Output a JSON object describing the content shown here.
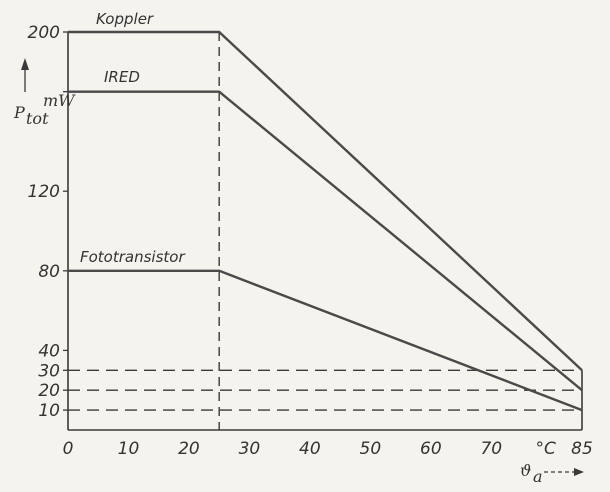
{
  "chart_data": {
    "type": "line",
    "xlim": [
      0,
      85
    ],
    "ylim": [
      0,
      200
    ],
    "x_ticks": [
      "0",
      "10",
      "20",
      "30",
      "40",
      "50",
      "60",
      "70",
      "°C",
      "85"
    ],
    "y_ticks": [
      "200",
      "120",
      "80",
      "40",
      "30",
      "20",
      "10"
    ],
    "ylabel": "P",
    "ylabel_sub": "tot",
    "yunit": "mW",
    "xlabel": "ϑ",
    "xlabel_sub": "a",
    "series": [
      {
        "name": "Koppler",
        "x": [
          0,
          25,
          85
        ],
        "y": [
          200,
          200,
          30
        ]
      },
      {
        "name": "IRED",
        "x": [
          0,
          25,
          85
        ],
        "y": [
          170,
          170,
          20
        ]
      },
      {
        "name": "Fototransistor",
        "x": [
          0,
          25,
          85
        ],
        "y": [
          80,
          80,
          10
        ]
      }
    ],
    "reference_lines": {
      "vertical_x": 25,
      "horizontal_y": [
        30,
        20,
        10
      ]
    },
    "grid": false
  }
}
